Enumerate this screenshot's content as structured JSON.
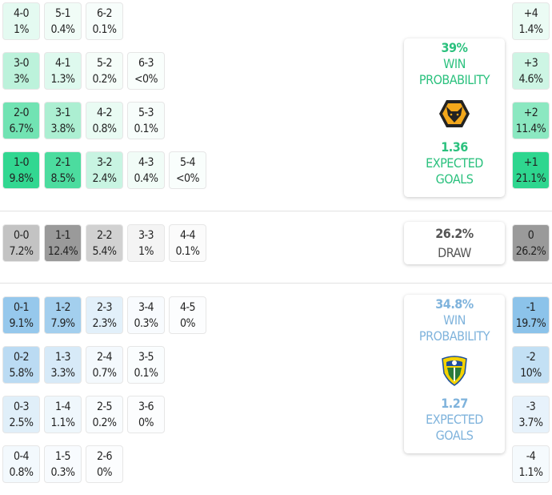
{
  "colors": {
    "home": "#2ed68f",
    "draw": "#9a9a9a",
    "away": "#8cc3ea",
    "home_text": "#2bc17e",
    "away_text": "#7fb3dc",
    "draw_text": "#555555"
  },
  "home_rows": [
    [
      {
        "s": "4-0",
        "p": "1%",
        "v": 1
      },
      {
        "s": "5-1",
        "p": "0.4%",
        "v": 0.4
      },
      {
        "s": "6-2",
        "p": "0.1%",
        "v": 0.1
      }
    ],
    [
      {
        "s": "3-0",
        "p": "3%",
        "v": 3
      },
      {
        "s": "4-1",
        "p": "1.3%",
        "v": 1.3
      },
      {
        "s": "5-2",
        "p": "0.2%",
        "v": 0.2
      },
      {
        "s": "6-3",
        "p": "<0%",
        "v": 0
      }
    ],
    [
      {
        "s": "2-0",
        "p": "6.7%",
        "v": 6.7
      },
      {
        "s": "3-1",
        "p": "3.8%",
        "v": 3.8
      },
      {
        "s": "4-2",
        "p": "0.8%",
        "v": 0.8
      },
      {
        "s": "5-3",
        "p": "0.1%",
        "v": 0.1
      }
    ],
    [
      {
        "s": "1-0",
        "p": "9.8%",
        "v": 9.8
      },
      {
        "s": "2-1",
        "p": "8.5%",
        "v": 8.5
      },
      {
        "s": "3-2",
        "p": "2.4%",
        "v": 2.4
      },
      {
        "s": "4-3",
        "p": "0.4%",
        "v": 0.4
      },
      {
        "s": "5-4",
        "p": "<0%",
        "v": 0
      }
    ]
  ],
  "draw_row": [
    {
      "s": "0-0",
      "p": "7.2%",
      "v": 7.2
    },
    {
      "s": "1-1",
      "p": "12.4%",
      "v": 12.4
    },
    {
      "s": "2-2",
      "p": "5.4%",
      "v": 5.4
    },
    {
      "s": "3-3",
      "p": "1%",
      "v": 1
    },
    {
      "s": "4-4",
      "p": "0.1%",
      "v": 0.1
    }
  ],
  "away_rows": [
    [
      {
        "s": "0-1",
        "p": "9.1%",
        "v": 9.1
      },
      {
        "s": "1-2",
        "p": "7.9%",
        "v": 7.9
      },
      {
        "s": "2-3",
        "p": "2.3%",
        "v": 2.3
      },
      {
        "s": "3-4",
        "p": "0.3%",
        "v": 0.3
      },
      {
        "s": "4-5",
        "p": "0%",
        "v": 0
      }
    ],
    [
      {
        "s": "0-2",
        "p": "5.8%",
        "v": 5.8
      },
      {
        "s": "1-3",
        "p": "3.3%",
        "v": 3.3
      },
      {
        "s": "2-4",
        "p": "0.7%",
        "v": 0.7
      },
      {
        "s": "3-5",
        "p": "0.1%",
        "v": 0.1
      }
    ],
    [
      {
        "s": "0-3",
        "p": "2.5%",
        "v": 2.5
      },
      {
        "s": "1-4",
        "p": "1.1%",
        "v": 1.1
      },
      {
        "s": "2-5",
        "p": "0.2%",
        "v": 0.2
      },
      {
        "s": "3-6",
        "p": "0%",
        "v": 0
      }
    ],
    [
      {
        "s": "0-4",
        "p": "0.8%",
        "v": 0.8
      },
      {
        "s": "1-5",
        "p": "0.3%",
        "v": 0.3
      },
      {
        "s": "2-6",
        "p": "0%",
        "v": 0
      }
    ]
  ],
  "home_margins": [
    {
      "s": "+4",
      "p": "1.4%",
      "v": 1.4
    },
    {
      "s": "+3",
      "p": "4.6%",
      "v": 4.6
    },
    {
      "s": "+2",
      "p": "11.4%",
      "v": 11.4
    },
    {
      "s": "+1",
      "p": "21.1%",
      "v": 21.1
    }
  ],
  "draw_margin": {
    "s": "0",
    "p": "26.2%",
    "v": 26.2
  },
  "away_margins": [
    {
      "s": "-1",
      "p": "19.7%",
      "v": 19.7
    },
    {
      "s": "-2",
      "p": "10%",
      "v": 10
    },
    {
      "s": "-3",
      "p": "3.7%",
      "v": 3.7
    },
    {
      "s": "-4",
      "p": "1.1%",
      "v": 1.1
    }
  ],
  "home": {
    "win_pct": "39%",
    "win_label1": "WIN",
    "win_label2": "PROBABILITY",
    "xg": "1.36",
    "xg_label1": "EXPECTED",
    "xg_label2": "GOALS",
    "crest": "wolves-crest"
  },
  "draw": {
    "pct": "26.2%",
    "label": "DRAW"
  },
  "away": {
    "win_pct": "34.8%",
    "win_label1": "WIN",
    "win_label2": "PROBABILITY",
    "xg": "1.27",
    "xg_label1": "EXPECTED",
    "xg_label2": "GOALS",
    "crest": "leeds-crest"
  }
}
